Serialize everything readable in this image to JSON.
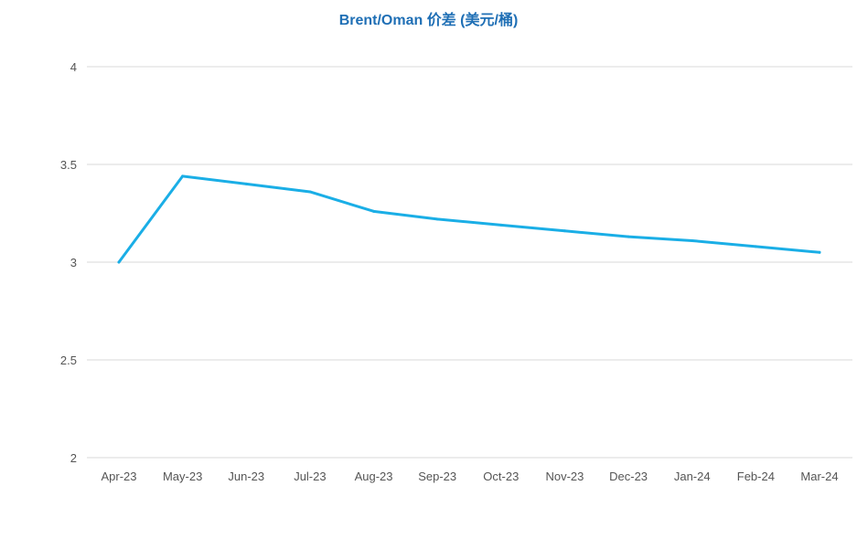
{
  "chart_data": {
    "type": "line",
    "title": "Brent/Oman 价差 (美元/桶)",
    "xlabel": "",
    "ylabel": "",
    "categories": [
      "Apr-23",
      "May-23",
      "Jun-23",
      "Jul-23",
      "Aug-23",
      "Sep-23",
      "Oct-23",
      "Nov-23",
      "Dec-23",
      "Jan-24",
      "Feb-24",
      "Mar-24"
    ],
    "series": [
      {
        "values": [
          3.0,
          3.44,
          3.4,
          3.36,
          3.26,
          3.22,
          3.19,
          3.16,
          3.13,
          3.11,
          3.08,
          3.05
        ]
      }
    ],
    "ylim": [
      2,
      4
    ],
    "yticks": [
      2,
      2.5,
      3,
      3.5,
      4
    ],
    "grid": true,
    "legend": "none",
    "colors": {
      "line": "#1aaee6",
      "grid": "#d9d9d9",
      "title": "#1f6fb5"
    }
  }
}
